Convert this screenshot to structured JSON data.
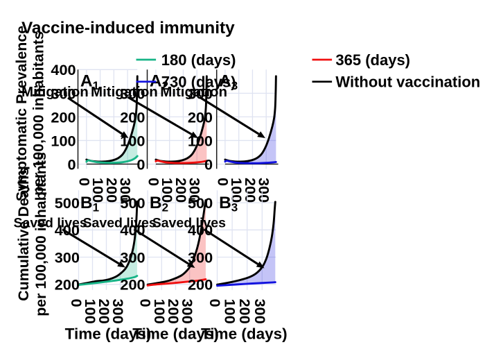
{
  "title": "Vaccine-induced immunity",
  "colors": {
    "teal": "#17b487",
    "red": "#f01010",
    "blue": "#1212df",
    "black": "#000000",
    "grid": "#dfe3f1",
    "spine": "#1a1a1a",
    "fill_alpha": 0.25
  },
  "legend": {
    "columns": [
      [
        {
          "label": "180 (days)",
          "color": "teal"
        },
        {
          "label": "730 (days)",
          "color": "blue"
        }
      ],
      [
        {
          "label": "365 (days)",
          "color": "red"
        },
        {
          "label": "Without vaccination",
          "color": "black"
        }
      ]
    ]
  },
  "chart_data": {
    "type": "line",
    "xlabel": "Time (days)",
    "xticks": [
      0,
      100,
      200,
      300
    ],
    "rows": [
      {
        "id": "A",
        "ylabel_line1": "Symptomatic Prevalence",
        "ylabel_line2": "per 100,000 inhabitants",
        "yticks": [
          0,
          100,
          200,
          300,
          400
        ],
        "yticks_panels": [
          [
            0,
            100,
            200,
            300,
            400
          ],
          [
            0,
            100,
            200,
            300
          ],
          [
            0,
            100,
            200,
            300
          ]
        ],
        "ylim": [
          -20,
          400
        ],
        "annotation": "Mitigation",
        "baseline": true,
        "black_series_name": "Without vaccination",
        "panels": [
          {
            "label": "A",
            "sub": "1",
            "color": "teal",
            "black": [
              [
                0,
                19
              ],
              [
                40,
                13
              ],
              [
                90,
                10.5
              ],
              [
                140,
                11
              ],
              [
                190,
                16
              ],
              [
                230,
                25
              ],
              [
                265,
                42
              ],
              [
                295,
                72
              ],
              [
                320,
                110
              ],
              [
                345,
                160
              ],
              [
                358,
                196
              ],
              [
                365,
                235
              ],
              [
                368,
                275
              ],
              [
                370,
                320
              ],
              [
                371.5,
                372
              ]
            ],
            "series": [
              [
                0,
                10
              ],
              [
                12,
                16
              ],
              [
                30,
                14
              ],
              [
                70,
                9
              ],
              [
                120,
                6.5
              ],
              [
                170,
                5.5
              ],
              [
                220,
                6
              ],
              [
                260,
                8
              ],
              [
                300,
                12
              ],
              [
                330,
                17
              ],
              [
                355,
                25
              ],
              [
                371.5,
                34
              ]
            ]
          },
          {
            "label": "A",
            "sub": "2",
            "color": "red",
            "black": [
              [
                0,
                19
              ],
              [
                40,
                13
              ],
              [
                90,
                10.5
              ],
              [
                140,
                11
              ],
              [
                190,
                16
              ],
              [
                230,
                25
              ],
              [
                265,
                42
              ],
              [
                295,
                72
              ],
              [
                320,
                110
              ],
              [
                345,
                160
              ],
              [
                358,
                196
              ],
              [
                365,
                235
              ],
              [
                368,
                275
              ],
              [
                370,
                320
              ],
              [
                371.5,
                372
              ]
            ],
            "series": [
              [
                0,
                12
              ],
              [
                12,
                15
              ],
              [
                35,
                12
              ],
              [
                80,
                7
              ],
              [
                130,
                5
              ],
              [
                180,
                4.5
              ],
              [
                230,
                5
              ],
              [
                280,
                6.5
              ],
              [
                320,
                8.5
              ],
              [
                350,
                11
              ],
              [
                371.5,
                14
              ]
            ]
          },
          {
            "label": "A",
            "sub": "3",
            "color": "blue",
            "black": [
              [
                0,
                19
              ],
              [
                40,
                13
              ],
              [
                90,
                10.5
              ],
              [
                140,
                11
              ],
              [
                190,
                16
              ],
              [
                230,
                25
              ],
              [
                265,
                42
              ],
              [
                295,
                72
              ],
              [
                320,
                110
              ],
              [
                345,
                160
              ],
              [
                358,
                196
              ],
              [
                365,
                235
              ],
              [
                368,
                275
              ],
              [
                370,
                320
              ],
              [
                371.5,
                372
              ]
            ],
            "series": [
              [
                0,
                11
              ],
              [
                12,
                14
              ],
              [
                35,
                11
              ],
              [
                80,
                6.5
              ],
              [
                130,
                4.5
              ],
              [
                180,
                4
              ],
              [
                230,
                4
              ],
              [
                280,
                5
              ],
              [
                320,
                6
              ],
              [
                350,
                7.5
              ],
              [
                371.5,
                9
              ]
            ]
          }
        ]
      },
      {
        "id": "B",
        "ylabel_line1": "Cumulative Deaths",
        "ylabel_line2": "per 100,000 inhabitants",
        "yticks": [
          200,
          300,
          400,
          500
        ],
        "yticks_panels": [
          [
            200,
            300,
            400,
            500
          ],
          [
            200,
            300,
            400,
            500
          ],
          [
            200,
            300,
            400,
            500
          ]
        ],
        "ylim": [
          180,
          573
        ],
        "annotation": "Saved lives",
        "baseline": false,
        "black_series_name": "Without vaccination",
        "panels": [
          {
            "label": "B",
            "sub": "1",
            "color": "teal",
            "black": [
              [
                0,
                199
              ],
              [
                60,
                205
              ],
              [
                131,
                211.7
              ],
              [
                179,
                214
              ],
              [
                221,
                218.6
              ],
              [
                258,
                225.4
              ],
              [
                289,
                234.6
              ],
              [
                321,
                248.4
              ],
              [
                345,
                263
              ],
              [
                370,
                290
              ],
              [
                390,
                325
              ],
              [
                404,
                365
              ],
              [
                412,
                405
              ],
              [
                417,
                440
              ],
              [
                420,
                472
              ],
              [
                422,
                505
              ]
            ],
            "series": [
              [
                0,
                198
              ],
              [
                40,
                200
              ],
              [
                100,
                203.5
              ],
              [
                160,
                207
              ],
              [
                220,
                211
              ],
              [
                280,
                215
              ],
              [
                330,
                219
              ],
              [
                370,
                222.5
              ],
              [
                400,
                226
              ],
              [
                415,
                229
              ],
              [
                422,
                231
              ]
            ]
          },
          {
            "label": "B",
            "sub": "2",
            "color": "red",
            "black": [
              [
                0,
                199
              ],
              [
                55,
                203.5
              ],
              [
                105,
                208
              ],
              [
                155,
                214
              ],
              [
                205,
                223.5
              ],
              [
                245,
                234
              ],
              [
                278,
                249
              ],
              [
                305,
                266.5
              ],
              [
                325,
                288
              ],
              [
                342,
                313
              ],
              [
                355,
                335
              ],
              [
                368,
                363
              ],
              [
                380,
                395
              ],
              [
                391,
                428
              ],
              [
                400,
                458
              ],
              [
                407,
                483
              ],
              [
                412,
                500
              ],
              [
                415,
                509
              ]
            ],
            "series": [
              [
                0,
                196
              ],
              [
                50,
                199
              ],
              [
                120,
                202
              ],
              [
                200,
                205.5
              ],
              [
                280,
                209.5
              ],
              [
                340,
                212.5
              ],
              [
                380,
                215
              ],
              [
                405,
                217.5
              ],
              [
                415,
                218.5
              ]
            ]
          },
          {
            "label": "B",
            "sub": "3",
            "color": "blue",
            "black": [
              [
                0,
                199
              ],
              [
                100,
                209
              ],
              [
                200,
                223.5
              ],
              [
                257,
                239
              ],
              [
                300,
                263
              ],
              [
                328,
                294
              ],
              [
                349,
                333
              ],
              [
                365,
                375
              ],
              [
                377,
                425
              ],
              [
                384,
                475
              ],
              [
                388,
                503
              ]
            ],
            "series": [
              [
                0,
                195
              ],
              [
                100,
                198.5
              ],
              [
                200,
                202
              ],
              [
                300,
                205
              ],
              [
                360,
                206.8
              ],
              [
                388,
                207.8
              ]
            ]
          }
        ]
      }
    ]
  }
}
